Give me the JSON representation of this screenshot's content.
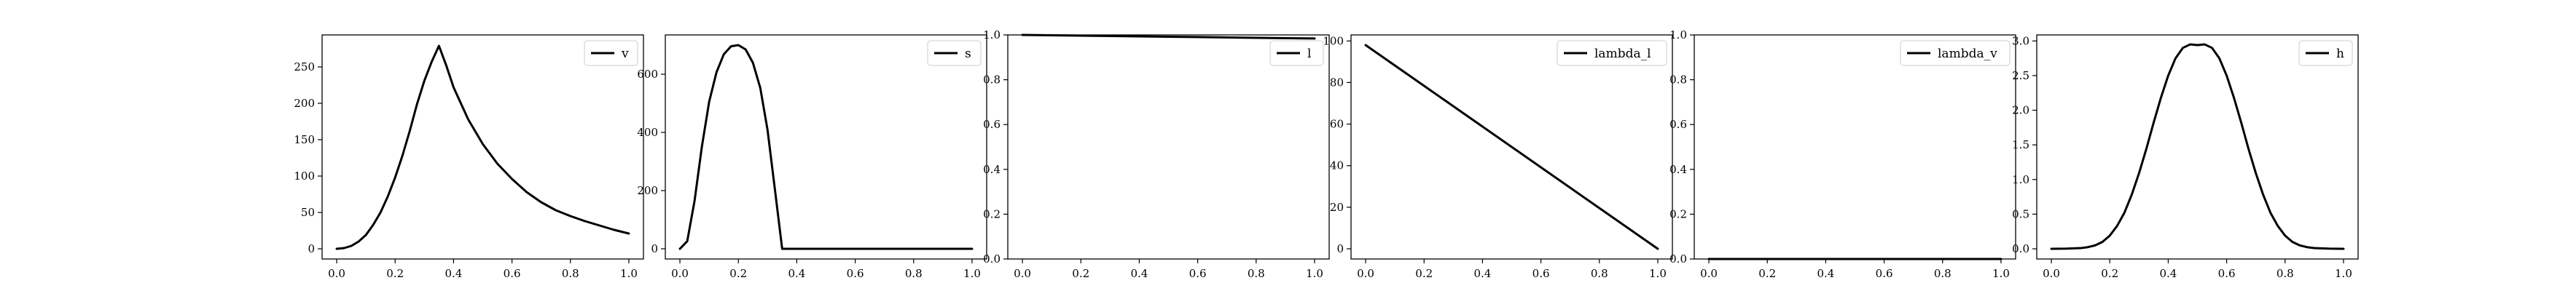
{
  "chart_data": [
    {
      "type": "line",
      "legend": "v",
      "legend_position": "upper right",
      "grid": false,
      "color": "#000000",
      "xlim": [
        -0.05,
        1.05
      ],
      "ylim": [
        -14,
        294
      ],
      "xticks": [
        0.0,
        0.2,
        0.4,
        0.6,
        0.8,
        1.0
      ],
      "xtick_labels": [
        "0.0",
        "0.2",
        "0.4",
        "0.6",
        "0.8",
        "1.0"
      ],
      "yticks": [
        0,
        50,
        100,
        150,
        200,
        250
      ],
      "ytick_labels": [
        "0",
        "50",
        "100",
        "150",
        "200",
        "250"
      ],
      "x": [
        0.0,
        0.025,
        0.05,
        0.075,
        0.1,
        0.125,
        0.15,
        0.175,
        0.2,
        0.225,
        0.25,
        0.275,
        0.3,
        0.325,
        0.35,
        0.375,
        0.4,
        0.45,
        0.5,
        0.55,
        0.6,
        0.65,
        0.7,
        0.75,
        0.8,
        0.85,
        0.9,
        0.95,
        1.0
      ],
      "y": [
        0,
        1,
        4,
        10,
        19,
        33,
        50,
        72,
        98,
        128,
        162,
        199,
        231,
        257,
        279,
        252,
        222,
        178,
        144,
        117,
        96,
        78,
        64,
        53,
        45,
        38,
        32,
        26,
        21
      ]
    },
    {
      "type": "line",
      "legend": "s",
      "legend_position": "upper right",
      "grid": false,
      "color": "#000000",
      "xlim": [
        -0.05,
        1.05
      ],
      "ylim": [
        -35,
        735
      ],
      "xticks": [
        0.0,
        0.2,
        0.4,
        0.6,
        0.8,
        1.0
      ],
      "xtick_labels": [
        "0.0",
        "0.2",
        "0.4",
        "0.6",
        "0.8",
        "1.0"
      ],
      "yticks": [
        0,
        200,
        400,
        600
      ],
      "ytick_labels": [
        "0",
        "200",
        "400",
        "600"
      ],
      "x": [
        0.0,
        0.025,
        0.05,
        0.075,
        0.1,
        0.125,
        0.15,
        0.175,
        0.2,
        0.225,
        0.25,
        0.275,
        0.3,
        0.325,
        0.35,
        0.4,
        0.5,
        0.6,
        0.7,
        0.8,
        0.9,
        1.0
      ],
      "y": [
        0,
        26,
        164,
        350,
        505,
        606,
        668,
        696,
        700,
        685,
        639,
        553,
        408,
        205,
        0,
        0,
        0,
        0,
        0,
        0,
        0,
        0
      ]
    },
    {
      "type": "line",
      "legend": "l",
      "legend_position": "upper right",
      "grid": false,
      "color": "#000000",
      "xlim": [
        -0.05,
        1.05
      ],
      "ylim": [
        0.0,
        1.0
      ],
      "xticks": [
        0.0,
        0.2,
        0.4,
        0.6,
        0.8,
        1.0
      ],
      "xtick_labels": [
        "0.0",
        "0.2",
        "0.4",
        "0.6",
        "0.8",
        "1.0"
      ],
      "yticks": [
        0.0,
        0.2,
        0.4,
        0.6,
        0.8,
        1.0
      ],
      "ytick_labels": [
        "0.0",
        "0.2",
        "0.4",
        "0.6",
        "0.8",
        "1.0"
      ],
      "x": [
        0.0,
        0.25,
        0.5,
        0.75,
        1.0
      ],
      "y": [
        1.0,
        0.996,
        0.992,
        0.988,
        0.984
      ]
    },
    {
      "type": "line",
      "legend": "lambda_l",
      "legend_position": "upper right",
      "grid": false,
      "color": "#000000",
      "xlim": [
        -0.05,
        1.05
      ],
      "ylim": [
        -4.9,
        102.9
      ],
      "xticks": [
        0.0,
        0.2,
        0.4,
        0.6,
        0.8,
        1.0
      ],
      "xtick_labels": [
        "0.0",
        "0.2",
        "0.4",
        "0.6",
        "0.8",
        "1.0"
      ],
      "yticks": [
        0,
        20,
        40,
        60,
        80,
        100
      ],
      "ytick_labels": [
        "0",
        "20",
        "40",
        "60",
        "80",
        "100"
      ],
      "x": [
        0.0,
        1.0
      ],
      "y": [
        98,
        0
      ]
    },
    {
      "type": "line",
      "legend": "lambda_v",
      "legend_position": "upper right",
      "grid": false,
      "color": "#000000",
      "xlim": [
        -0.05,
        1.05
      ],
      "ylim": [
        0.0,
        1.0
      ],
      "xticks": [
        0.0,
        0.2,
        0.4,
        0.6,
        0.8,
        1.0
      ],
      "xtick_labels": [
        "0.0",
        "0.2",
        "0.4",
        "0.6",
        "0.8",
        "1.0"
      ],
      "yticks": [
        0.0,
        0.2,
        0.4,
        0.6,
        0.8,
        1.0
      ],
      "ytick_labels": [
        "0.0",
        "0.2",
        "0.4",
        "0.6",
        "0.8",
        "1.0"
      ],
      "x": [
        0.0,
        1.0
      ],
      "y": [
        0.0,
        0.0
      ]
    },
    {
      "type": "line",
      "legend": "h",
      "legend_position": "upper right",
      "grid": false,
      "color": "#000000",
      "xlim": [
        -0.05,
        1.05
      ],
      "ylim": [
        -0.147,
        3.087
      ],
      "xticks": [
        0.0,
        0.2,
        0.4,
        0.6,
        0.8,
        1.0
      ],
      "xtick_labels": [
        "0.0",
        "0.2",
        "0.4",
        "0.6",
        "0.8",
        "1.0"
      ],
      "yticks": [
        0.0,
        0.5,
        1.0,
        1.5,
        2.0,
        2.5,
        3.0
      ],
      "ytick_labels": [
        "0.0",
        "0.5",
        "1.0",
        "1.5",
        "2.0",
        "2.5",
        "3.0"
      ],
      "x": [
        0.0,
        0.05,
        0.1,
        0.125,
        0.15,
        0.175,
        0.2,
        0.225,
        0.25,
        0.275,
        0.3,
        0.325,
        0.35,
        0.375,
        0.4,
        0.425,
        0.45,
        0.475,
        0.5,
        0.525,
        0.55,
        0.575,
        0.6,
        0.625,
        0.65,
        0.675,
        0.7,
        0.725,
        0.75,
        0.775,
        0.8,
        0.825,
        0.85,
        0.875,
        0.9,
        0.95,
        1.0
      ],
      "y": [
        0.0,
        0.002,
        0.01,
        0.024,
        0.05,
        0.1,
        0.19,
        0.33,
        0.52,
        0.78,
        1.09,
        1.44,
        1.82,
        2.18,
        2.5,
        2.75,
        2.9,
        2.95,
        2.94,
        2.95,
        2.9,
        2.75,
        2.5,
        2.18,
        1.82,
        1.44,
        1.09,
        0.78,
        0.52,
        0.33,
        0.19,
        0.1,
        0.05,
        0.024,
        0.01,
        0.002,
        0.0
      ]
    }
  ]
}
